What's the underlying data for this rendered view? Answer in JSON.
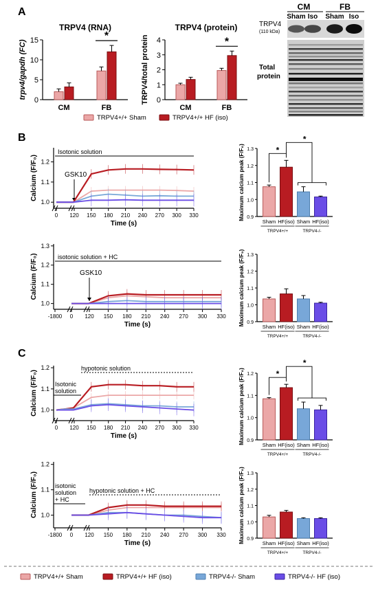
{
  "panels": {
    "A": "A",
    "B": "B",
    "C": "C"
  },
  "colors": {
    "wt_sham": "#eba7a7",
    "wt_hf": "#b81c22",
    "ko_sham": "#78a7d8",
    "ko_hf": "#6a4de6",
    "axis": "#000000"
  },
  "legend_top": {
    "wt_sham": "TRPV4+/+ Sham",
    "wt_hf": "TRPV4+/+ HF (iso)"
  },
  "legend_bottom": {
    "wt_sham": "TRPV4+/+ Sham",
    "wt_hf": "TRPV4+/+ HF (iso)",
    "ko_sham": "TRPV4-/- Sham",
    "ko_hf": "TRPV4-/- HF (iso)"
  },
  "blot": {
    "header_cm": "CM",
    "header_fb": "FB",
    "lane_labels": [
      "Sham",
      "Iso",
      "Sham",
      "Iso"
    ],
    "band_label": "TRPV4",
    "band_kda": "(110 kDa)",
    "total_label": "Total\nprotein",
    "total_label_lines": [
      "Total",
      "protein"
    ]
  },
  "chart_data": [
    {
      "id": "rna",
      "type": "bar",
      "title": "TRPV4 (RNA)",
      "ylabel": "trpv4/gapdh (FC)",
      "categories": [
        "CM",
        "FB"
      ],
      "series": [
        {
          "name": "TRPV4+/+ Sham",
          "values": [
            2.0,
            7.2
          ],
          "errors": [
            0.7,
            1.0
          ]
        },
        {
          "name": "TRPV4+/+ HF (iso)",
          "values": [
            3.2,
            12.0
          ],
          "errors": [
            1.0,
            1.6
          ]
        }
      ],
      "ylim": [
        0,
        15
      ],
      "yticks": [
        0,
        5,
        10,
        15
      ],
      "significance": "*"
    },
    {
      "id": "protein",
      "type": "bar",
      "title": "TRPV4 (protein)",
      "ylabel": "TRPV4/total protein",
      "categories": [
        "CM",
        "FB"
      ],
      "series": [
        {
          "name": "TRPV4+/+ Sham",
          "values": [
            1.0,
            1.95
          ],
          "errors": [
            0.1,
            0.15
          ]
        },
        {
          "name": "TRPV4+/+ HF (iso)",
          "values": [
            1.35,
            2.95
          ],
          "errors": [
            0.15,
            0.3
          ]
        }
      ],
      "ylim": [
        0,
        4
      ],
      "yticks": [
        0,
        1,
        2,
        3,
        4
      ],
      "significance": "*"
    },
    {
      "id": "B1",
      "type": "line",
      "ylabel": "Calcium (F/F₀)",
      "xlabel": "Time (s)",
      "xticks": [
        0,
        120,
        150,
        180,
        210,
        240,
        270,
        300,
        330
      ],
      "ylim": [
        0.97,
        1.27
      ],
      "yticks": [
        1.0,
        1.1,
        1.2
      ],
      "annotations": {
        "bar": "Isotonic solution",
        "arrow": "GSK10"
      },
      "series": [
        {
          "name": "TRPV4+/+ Sham",
          "x": [
            0,
            60,
            115,
            150,
            180,
            210,
            240,
            270,
            300,
            330
          ],
          "y": [
            1.0,
            1.0,
            1.0,
            1.055,
            1.06,
            1.06,
            1.06,
            1.06,
            1.058,
            1.055
          ]
        },
        {
          "name": "TRPV4+/+ HF (iso)",
          "x": [
            0,
            60,
            115,
            150,
            180,
            210,
            240,
            270,
            300,
            330
          ],
          "y": [
            1.0,
            1.0,
            1.0,
            1.14,
            1.16,
            1.165,
            1.165,
            1.163,
            1.162,
            1.16
          ]
        },
        {
          "name": "TRPV4-/- Sham",
          "x": [
            0,
            60,
            115,
            150,
            180,
            210,
            240,
            270,
            300,
            330
          ],
          "y": [
            1.0,
            1.0,
            1.0,
            1.03,
            1.04,
            1.035,
            1.03,
            1.032,
            1.03,
            1.03
          ]
        },
        {
          "name": "TRPV4-/- HF (iso)",
          "x": [
            0,
            60,
            115,
            150,
            180,
            210,
            240,
            270,
            300,
            330
          ],
          "y": [
            1.0,
            1.0,
            1.0,
            1.01,
            1.01,
            1.012,
            1.01,
            1.01,
            1.01,
            1.01
          ]
        }
      ]
    },
    {
      "id": "B1bar",
      "type": "bar",
      "ylabel": "Maximum calcium peak (F/F₀)",
      "categories": [
        "Sham",
        "HF(iso)",
        "Sham",
        "HF(iso)"
      ],
      "groups": [
        "TRPV4+/+",
        "TRPV4-/-"
      ],
      "values": [
        1.075,
        1.19,
        1.045,
        1.015
      ],
      "errors": [
        0.01,
        0.04,
        0.03,
        0.005
      ],
      "ylim": [
        0.9,
        1.3
      ],
      "yticks": [
        0.9,
        1.0,
        1.1,
        1.2,
        1.3
      ],
      "significance": [
        "*",
        "*"
      ]
    },
    {
      "id": "B2",
      "type": "line",
      "ylabel": "Calcium (F/F₀)",
      "xlabel": "Time (s)",
      "xticks": [
        -1800,
        0,
        120,
        150,
        180,
        210,
        240,
        270,
        300,
        330
      ],
      "ylim": [
        0.97,
        1.31
      ],
      "yticks": [
        1.0,
        1.1,
        1.2,
        1.3
      ],
      "annotations": {
        "bar": "isotonic solution + HC",
        "arrow": "GSK10"
      },
      "series": [
        {
          "name": "TRPV4+/+ Sham",
          "x": [
            0,
            60,
            115,
            150,
            180,
            210,
            240,
            270,
            300,
            330
          ],
          "y": [
            1.0,
            1.0,
            1.0,
            1.03,
            1.04,
            1.035,
            1.03,
            1.03,
            1.03,
            1.03
          ]
        },
        {
          "name": "TRPV4+/+ HF (iso)",
          "x": [
            0,
            60,
            115,
            150,
            180,
            210,
            240,
            270,
            300,
            330
          ],
          "y": [
            1.0,
            1.0,
            1.0,
            1.04,
            1.05,
            1.045,
            1.045,
            1.045,
            1.045,
            1.045
          ]
        },
        {
          "name": "TRPV4-/- Sham",
          "x": [
            0,
            60,
            115,
            150,
            180,
            210,
            240,
            270,
            300,
            330
          ],
          "y": [
            1.0,
            1.0,
            1.0,
            1.01,
            1.015,
            1.01,
            1.01,
            1.01,
            1.01,
            1.01
          ]
        },
        {
          "name": "TRPV4-/- HF (iso)",
          "x": [
            0,
            60,
            115,
            150,
            180,
            210,
            240,
            270,
            300,
            330
          ],
          "y": [
            1.0,
            1.0,
            1.0,
            1.0,
            1.0,
            1.0,
            1.0,
            1.0,
            1.0,
            1.0
          ]
        }
      ]
    },
    {
      "id": "B2bar",
      "type": "bar",
      "ylabel": "Maximum calcium peak (F/F₀)",
      "categories": [
        "Sham",
        "HF(iso)",
        "Sham",
        "HF(iso)"
      ],
      "groups": [
        "TRPV4+/+",
        "TRPV4-/-"
      ],
      "values": [
        1.035,
        1.065,
        1.035,
        1.01
      ],
      "errors": [
        0.01,
        0.03,
        0.02,
        0.005
      ],
      "ylim": [
        0.9,
        1.3
      ],
      "yticks": [
        0.9,
        1.0,
        1.1,
        1.2,
        1.3
      ]
    },
    {
      "id": "C1",
      "type": "line",
      "ylabel": "Calcium (F/F₀)",
      "xlabel": "Time (s)",
      "xticks": [
        0,
        120,
        150,
        180,
        210,
        240,
        270,
        300,
        330
      ],
      "ylim": [
        0.95,
        1.21
      ],
      "yticks": [
        1.0,
        1.1,
        1.2
      ],
      "annotations": {
        "bar": "hypotonic solution",
        "left_lines": [
          "Isotonic",
          "solution"
        ]
      },
      "series": [
        {
          "name": "TRPV4+/+ Sham",
          "x": [
            0,
            60,
            115,
            150,
            180,
            210,
            240,
            270,
            300,
            330
          ],
          "y": [
            1.0,
            1.005,
            1.01,
            1.06,
            1.07,
            1.07,
            1.07,
            1.07,
            1.07,
            1.07
          ]
        },
        {
          "name": "TRPV4+/+ HF (iso)",
          "x": [
            0,
            60,
            115,
            150,
            180,
            210,
            240,
            270,
            300,
            330
          ],
          "y": [
            1.0,
            1.005,
            1.01,
            1.11,
            1.12,
            1.12,
            1.115,
            1.115,
            1.11,
            1.11
          ]
        },
        {
          "name": "TRPV4-/- Sham",
          "x": [
            0,
            60,
            115,
            150,
            180,
            210,
            240,
            270,
            300,
            330
          ],
          "y": [
            1.0,
            1.005,
            1.005,
            1.025,
            1.03,
            1.025,
            1.02,
            1.02,
            1.015,
            1.015
          ]
        },
        {
          "name": "TRPV4-/- HF (iso)",
          "x": [
            0,
            60,
            115,
            150,
            180,
            210,
            240,
            270,
            300,
            330
          ],
          "y": [
            1.0,
            1.0,
            1.0,
            1.02,
            1.025,
            1.02,
            1.015,
            1.01,
            1.005,
            1.0
          ]
        }
      ]
    },
    {
      "id": "C1bar",
      "type": "bar",
      "ylabel": "Maximum calcium peak (F/F₀)",
      "categories": [
        "Sham",
        "HF(iso)",
        "Sham",
        "HF(iso)"
      ],
      "groups": [
        "TRPV4+/+",
        "TRPV4-/-"
      ],
      "values": [
        1.085,
        1.135,
        1.04,
        1.035
      ],
      "errors": [
        0.005,
        0.015,
        0.03,
        0.02
      ],
      "ylim": [
        0.9,
        1.2
      ],
      "yticks": [
        0.9,
        1.0,
        1.1,
        1.2
      ],
      "significance": [
        "*",
        "*"
      ]
    },
    {
      "id": "C2",
      "type": "line",
      "ylabel": "Calcium (F/F₀)",
      "xlabel": "Time (s)",
      "xticks": [
        -1800,
        0,
        120,
        150,
        180,
        210,
        240,
        270,
        300,
        330
      ],
      "ylim": [
        0.95,
        1.21
      ],
      "yticks": [
        1.0,
        1.1,
        1.2
      ],
      "annotations": {
        "bar": "hypotonic solution + HC",
        "left_lines": [
          "isotonic",
          "solution",
          "+ HC"
        ]
      },
      "series": [
        {
          "name": "TRPV4+/+ Sham",
          "x": [
            0,
            60,
            115,
            150,
            180,
            210,
            240,
            270,
            300,
            330
          ],
          "y": [
            1.0,
            1.0,
            1.0,
            1.02,
            1.03,
            1.03,
            1.03,
            1.03,
            1.03,
            1.03
          ]
        },
        {
          "name": "TRPV4+/+ HF (iso)",
          "x": [
            0,
            60,
            115,
            150,
            180,
            210,
            240,
            270,
            300,
            330
          ],
          "y": [
            1.0,
            1.0,
            1.0,
            1.03,
            1.04,
            1.04,
            1.035,
            1.035,
            1.035,
            1.035
          ]
        },
        {
          "name": "TRPV4-/- Sham",
          "x": [
            0,
            60,
            115,
            150,
            180,
            210,
            240,
            270,
            300,
            330
          ],
          "y": [
            1.0,
            1.0,
            1.0,
            1.01,
            1.01,
            1.005,
            1.0,
            1.0,
            0.995,
            0.99
          ]
        },
        {
          "name": "TRPV4-/- HF (iso)",
          "x": [
            0,
            60,
            115,
            150,
            180,
            210,
            240,
            270,
            300,
            330
          ],
          "y": [
            1.0,
            1.0,
            1.0,
            1.005,
            1.01,
            1.005,
            1.0,
            0.995,
            0.99,
            0.99
          ]
        }
      ]
    },
    {
      "id": "C2bar",
      "type": "bar",
      "ylabel": "Maximum calcium peak (F/F₀)",
      "categories": [
        "Sham",
        "HF(iso)",
        "Sham",
        "HF(iso)"
      ],
      "groups": [
        "TRPV4+/+",
        "TRPV4-/-"
      ],
      "values": [
        1.03,
        1.06,
        1.02,
        1.02
      ],
      "errors": [
        0.01,
        0.01,
        0.005,
        0.005
      ],
      "ylim": [
        0.9,
        1.3
      ],
      "yticks": [
        0.9,
        1.0,
        1.1,
        1.2,
        1.3
      ]
    }
  ]
}
